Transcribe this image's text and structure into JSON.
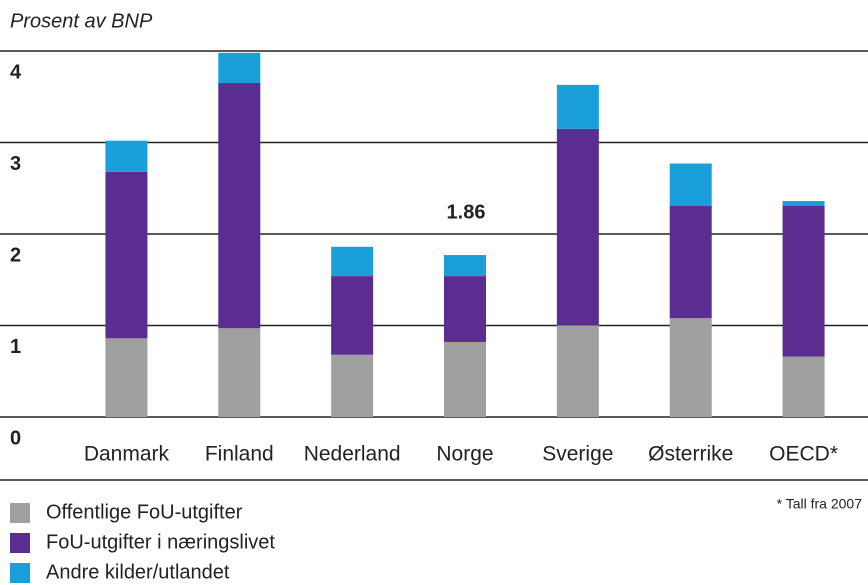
{
  "chart_data": {
    "type": "stacked_bar",
    "subtitle": "Prosent av BNP",
    "annotation": "1.86",
    "footnote": "* Tall fra 2007",
    "categories": [
      "Danmark",
      "Finland",
      "Nederland",
      "Norge",
      "Sverige",
      "Østerrike",
      "OECD*"
    ],
    "series": [
      {
        "name": "Offentlige FoU-utgifter",
        "color": "#a0a0a0",
        "values": [
          0.86,
          0.97,
          0.68,
          0.82,
          1.0,
          1.08,
          0.66
        ]
      },
      {
        "name": "FoU-utgifter i næringslivet",
        "color": "#5b2d91",
        "values": [
          1.82,
          2.68,
          0.86,
          0.72,
          2.15,
          1.23,
          1.65
        ]
      },
      {
        "name": "Andre kilder/utlandet",
        "color": "#1a9fdb",
        "values": [
          0.34,
          0.33,
          0.32,
          0.23,
          0.48,
          0.46,
          0.05
        ]
      }
    ],
    "ylim": [
      0,
      4
    ],
    "yticks": [
      0,
      1,
      2,
      3,
      4
    ],
    "grid": true
  }
}
